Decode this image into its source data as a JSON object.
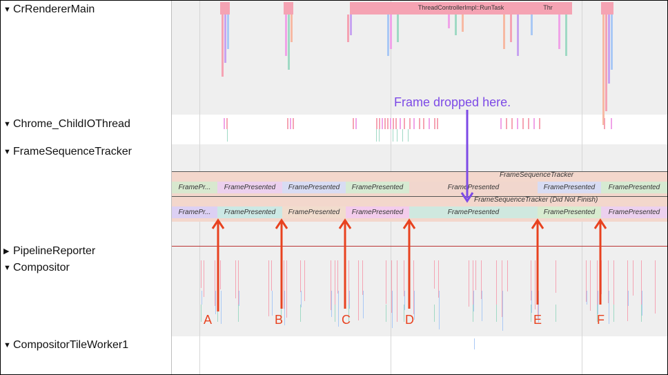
{
  "tracks": [
    {
      "label": "CrRendererMain",
      "expanded": true
    },
    {
      "label": "Chrome_ChildIOThread",
      "expanded": true
    },
    {
      "label": "FrameSequenceTracker",
      "expanded": true
    },
    {
      "label": "PipelineReporter",
      "expanded": false
    },
    {
      "label": "Compositor",
      "expanded": true
    },
    {
      "label": "CompositorTileWorker1",
      "expanded": true
    }
  ],
  "renderer_slices": [
    "ThreadControllerImpl::RunTask",
    "Thr"
  ],
  "frame_sequence": {
    "row1_title": "FrameSequenceTracker",
    "row1": [
      "FramePr...",
      "FramePresented",
      "FramePresented",
      "FramePresented",
      "FramePresented",
      "FramePresented",
      "FramePresented"
    ],
    "row2_title": "FrameSequenceTracker (Did Not Finish)",
    "row2": [
      "FramePr...",
      "FramePresented",
      "FramePresented",
      "FramePresented",
      "FramePresented",
      "FramePresented",
      "FramePresented"
    ]
  },
  "annotations": {
    "note": "Frame dropped here.",
    "markers": [
      "A",
      "B",
      "C",
      "D",
      "E",
      "F"
    ]
  },
  "colors": {
    "annotation_red": "#e8421f",
    "annotation_purple": "#7d4ae6"
  }
}
